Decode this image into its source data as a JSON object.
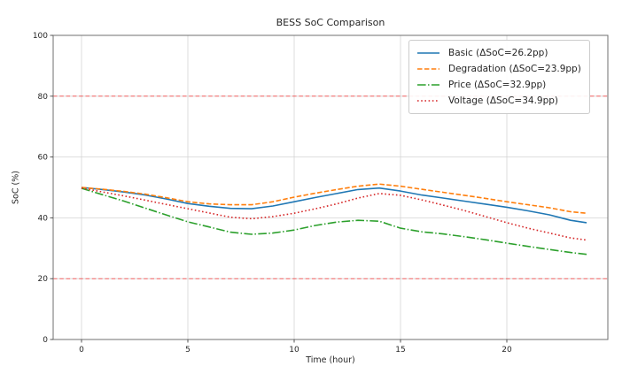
{
  "chart_data": {
    "type": "line",
    "title": "BESS SoC Comparison",
    "xlabel": "Time (hour)",
    "ylabel": "SoC (%)",
    "xlim": [
      -1.3333,
      24.75
    ],
    "ylim": [
      0,
      100
    ],
    "xticks": [
      0,
      5,
      10,
      15,
      20
    ],
    "yticks": [
      0,
      20,
      40,
      60,
      80,
      100
    ],
    "grid": true,
    "legend_position": "upper right",
    "limit_lines": [
      {
        "y": 80,
        "color": "#ff1f1f",
        "style": "dashed"
      },
      {
        "y": 20,
        "color": "#ff1f1f",
        "style": "dashed"
      }
    ],
    "x": [
      0,
      1,
      2,
      3,
      4,
      5,
      6,
      7,
      8,
      9,
      10,
      11,
      12,
      13,
      14,
      15,
      16,
      17,
      18,
      19,
      20,
      21,
      22,
      23,
      23.75
    ],
    "series": [
      {
        "name": "Basic",
        "label": "Basic (ΔSoC=26.2pp)",
        "color": "#1f77b4",
        "style": "solid",
        "values": [
          50.0,
          49.3,
          48.5,
          47.5,
          46.2,
          44.7,
          43.8,
          43.1,
          43.0,
          43.9,
          45.3,
          46.7,
          48.0,
          49.3,
          49.8,
          48.8,
          47.5,
          46.5,
          45.5,
          44.5,
          43.5,
          42.3,
          41.0,
          39.2,
          38.4
        ]
      },
      {
        "name": "Degradation",
        "label": "Degradation (ΔSoC=23.9pp)",
        "color": "#ff7f0e",
        "style": "dashed",
        "values": [
          50.0,
          49.4,
          48.7,
          47.8,
          46.6,
          45.3,
          44.6,
          44.3,
          44.3,
          45.3,
          46.8,
          48.1,
          49.3,
          50.4,
          51.1,
          50.4,
          49.4,
          48.4,
          47.4,
          46.4,
          45.3,
          44.3,
          43.3,
          42.0,
          41.5
        ]
      },
      {
        "name": "Price",
        "label": "Price (ΔSoC=32.9pp)",
        "color": "#2ca02c",
        "style": "dashdot",
        "values": [
          49.7,
          47.6,
          45.5,
          43.2,
          40.9,
          38.7,
          37.0,
          35.3,
          34.6,
          35.0,
          36.0,
          37.5,
          38.6,
          39.2,
          38.9,
          36.6,
          35.4,
          34.7,
          33.8,
          32.8,
          31.7,
          30.6,
          29.6,
          28.6,
          28.0
        ]
      },
      {
        "name": "Voltage",
        "label": "Voltage (ΔSoC=34.9pp)",
        "color": "#d62728",
        "style": "dotted",
        "values": [
          49.8,
          48.5,
          47.2,
          45.8,
          44.4,
          43.0,
          41.6,
          40.2,
          39.7,
          40.4,
          41.5,
          43.0,
          44.6,
          46.5,
          48.0,
          47.4,
          45.9,
          44.2,
          42.4,
          40.4,
          38.4,
          36.6,
          35.0,
          33.4,
          32.7
        ]
      }
    ]
  }
}
